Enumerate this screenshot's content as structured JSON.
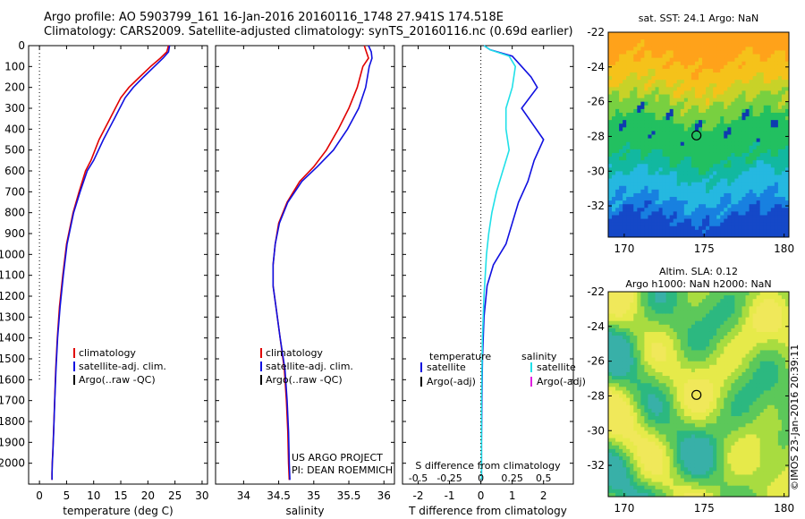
{
  "header": {
    "line1": "Argo profile: AO 5903799_161 16-Jan-2016 20160116_1748 27.941S 174.518E",
    "line2": "Climatology: CARS2009. Satellite-adjusted climatology: synTS_20160116.nc (0.69d earlier)"
  },
  "colors": {
    "climatology": "#e00000",
    "satellite": "#1010e0",
    "argo": "#000000",
    "sat_salinity": "#20e0e8",
    "argo_salinity": "#e020e0"
  },
  "chart_data": [
    {
      "id": "temperature",
      "type": "line",
      "xlabel": "temperature (deg C)",
      "ylabel": "",
      "xlim": [
        -2,
        31
      ],
      "ylim": [
        2100,
        0
      ],
      "xticks": [
        0,
        5,
        10,
        15,
        20,
        25,
        30
      ],
      "xtick_labels": [
        "0",
        "5",
        "10",
        "15",
        "20",
        "25",
        "30"
      ],
      "yticks": [
        0,
        100,
        200,
        300,
        400,
        500,
        600,
        700,
        800,
        900,
        1000,
        1100,
        1200,
        1300,
        1400,
        1500,
        1600,
        1700,
        1800,
        1900,
        2000
      ],
      "ytick_labels": [
        "0",
        "100",
        "200",
        "300",
        "400",
        "500",
        "600",
        "700",
        "800",
        "900",
        "1000",
        "1100",
        "1200",
        "1300",
        "1400",
        "1500",
        "1600",
        "1700",
        "1800",
        "1900",
        "2000"
      ],
      "zero_line": {
        "x": 0,
        "depth_range": [
          0,
          1600
        ]
      },
      "legend": {
        "position": "lower-left",
        "entries": [
          "climatology",
          "satellite-adj. clim.",
          "Argo(..raw -QC)"
        ]
      },
      "series": [
        {
          "name": "climatology",
          "x": [
            23.8,
            23.5,
            22.3,
            20.5,
            18.5,
            16.5,
            15.0,
            13.0,
            11.0,
            9.5,
            8.5,
            7.3,
            6.2,
            5.0,
            4.3,
            3.7,
            3.3,
            3.0,
            2.8,
            2.6,
            2.45,
            2.35,
            2.3,
            2.3
          ],
          "y": [
            0,
            30,
            60,
            100,
            150,
            200,
            250,
            350,
            450,
            550,
            600,
            700,
            800,
            950,
            1100,
            1250,
            1400,
            1550,
            1700,
            1850,
            1950,
            2000,
            2050,
            2080
          ]
        },
        {
          "name": "satellite-adj. clim.",
          "x": [
            24.0,
            23.8,
            22.8,
            21.2,
            19.2,
            17.3,
            15.8,
            13.8,
            11.8,
            10.0,
            8.8,
            7.5,
            6.3,
            5.1,
            4.4,
            3.8,
            3.35,
            3.05,
            2.82,
            2.62,
            2.47,
            2.37,
            2.32,
            2.32
          ],
          "y": [
            0,
            30,
            60,
            100,
            150,
            200,
            250,
            350,
            450,
            550,
            600,
            700,
            800,
            950,
            1100,
            1250,
            1400,
            1550,
            1700,
            1850,
            1950,
            2000,
            2050,
            2080
          ]
        }
      ]
    },
    {
      "id": "salinity",
      "type": "line",
      "xlabel": "salinity",
      "ylabel": "",
      "xlim": [
        33.6,
        36.15
      ],
      "ylim": [
        2100,
        0
      ],
      "xticks": [
        34,
        34.5,
        35,
        35.5,
        36
      ],
      "xtick_labels": [
        "34",
        "34.5",
        "35",
        "35.5",
        "36"
      ],
      "legend": {
        "position": "lower-left",
        "entries": [
          "climatology",
          "satellite-adj. clim.",
          "Argo(..raw -QC)"
        ]
      },
      "annotations": [
        "US ARGO PROJECT",
        "PI: DEAN ROEMMICH"
      ],
      "series": [
        {
          "name": "climatology",
          "x": [
            35.72,
            35.75,
            35.78,
            35.7,
            35.62,
            35.5,
            35.35,
            35.18,
            35.0,
            34.8,
            34.62,
            34.5,
            34.45,
            34.42,
            34.42,
            34.46,
            34.52,
            34.58,
            34.61,
            34.63,
            34.64,
            34.65
          ],
          "y": [
            0,
            30,
            60,
            100,
            200,
            300,
            400,
            500,
            580,
            650,
            750,
            850,
            950,
            1050,
            1150,
            1250,
            1400,
            1550,
            1700,
            1850,
            2000,
            2080
          ]
        },
        {
          "name": "satellite-adj. clim.",
          "x": [
            35.78,
            35.82,
            35.83,
            35.79,
            35.74,
            35.64,
            35.48,
            35.28,
            35.05,
            34.83,
            34.63,
            34.51,
            34.45,
            34.42,
            34.42,
            34.46,
            34.52,
            34.59,
            34.62,
            34.64,
            34.65,
            34.66
          ],
          "y": [
            0,
            30,
            60,
            100,
            200,
            300,
            400,
            500,
            580,
            650,
            750,
            850,
            950,
            1050,
            1150,
            1250,
            1400,
            1550,
            1700,
            1850,
            2000,
            2080
          ]
        }
      ]
    },
    {
      "id": "difference",
      "type": "line",
      "xlabel": "T difference from climatology",
      "xlabel_top": "S difference from climatology",
      "xlim": [
        -2.5,
        2.95
      ],
      "ylim": [
        2100,
        0
      ],
      "xticks": [
        -2,
        -1,
        0,
        1,
        2
      ],
      "xtick_labels": [
        "-2",
        "-1",
        "0",
        "1",
        "2"
      ],
      "sticks": [
        -2,
        -1,
        0,
        1,
        2
      ],
      "stick_labels": [
        "-0.5",
        "-0.25",
        "0",
        "0.25",
        "0.5"
      ],
      "legend": {
        "position": "lower-left",
        "temperature_header": "temperature",
        "salinity_header": "salinity",
        "entries": [
          "satellite",
          "Argo(-adj)",
          "satellite",
          "Argo(-adj)"
        ]
      },
      "series": [
        {
          "name": "temperature satellite",
          "x": [
            0.1,
            0.3,
            1.0,
            1.3,
            1.6,
            1.8,
            1.3,
            2.0,
            1.7,
            1.5,
            1.2,
            1.0,
            0.8,
            0.4,
            0.2,
            0.1,
            0.05,
            0.03,
            0.02,
            0.02
          ],
          "y": [
            0,
            20,
            50,
            100,
            150,
            200,
            300,
            450,
            550,
            650,
            750,
            850,
            950,
            1050,
            1150,
            1300,
            1500,
            1700,
            1900,
            2080
          ]
        },
        {
          "name": "salinity satellite",
          "x": [
            0.1,
            0.3,
            0.9,
            1.1,
            1.0,
            0.8,
            0.8,
            0.9,
            0.7,
            0.5,
            0.35,
            0.25,
            0.18,
            0.1,
            0.05,
            0.02,
            0.02
          ],
          "y": [
            0,
            20,
            50,
            100,
            200,
            300,
            400,
            500,
            600,
            700,
            800,
            900,
            1000,
            1200,
            1400,
            1700,
            2080
          ]
        }
      ]
    },
    {
      "id": "sst-map",
      "type": "heatmap",
      "title": "sat. SST: 24.1  Argo: NaN",
      "xlim": [
        169,
        180.3
      ],
      "ylim": [
        -33.8,
        -22
      ],
      "xticks": [
        170,
        175,
        180
      ],
      "xtick_labels": [
        "170",
        "175",
        "180"
      ],
      "yticks": [
        -22,
        -24,
        -26,
        -28,
        -30,
        -32
      ],
      "ytick_labels": [
        "-22",
        "-24",
        "-26",
        "-28",
        "-30",
        "-32"
      ],
      "marker": {
        "lon": 174.518,
        "lat": -27.941
      }
    },
    {
      "id": "sla-map",
      "type": "heatmap",
      "title": "Altim. SLA: 0.12",
      "subtitle": "Argo h1000: NaN h2000: NaN",
      "xlim": [
        169,
        180.3
      ],
      "ylim": [
        -33.8,
        -22
      ],
      "xticks": [
        170,
        175,
        180
      ],
      "xtick_labels": [
        "170",
        "175",
        "180"
      ],
      "yticks": [
        -22,
        -24,
        -26,
        -28,
        -30,
        -32
      ],
      "ytick_labels": [
        "-22",
        "-24",
        "-26",
        "-28",
        "-30",
        "-32"
      ],
      "marker": {
        "lon": 174.518,
        "lat": -27.941
      }
    }
  ],
  "copyright": "©IMOS 23-Jan-2016 20:39:11"
}
